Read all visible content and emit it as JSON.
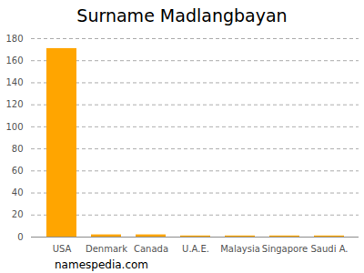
{
  "chart_data": {
    "type": "bar",
    "title": "Surname Madlangbayan",
    "caption": "namespedia.com",
    "categories": [
      "USA",
      "Denmark",
      "Canada",
      "U.A.E.",
      "Malaysia",
      "Singapore",
      "Saudi A."
    ],
    "values": [
      171,
      2,
      2,
      1,
      1,
      1,
      1
    ],
    "color": "#ffa500",
    "ylim": [
      0,
      180
    ],
    "yticks": [
      0,
      20,
      40,
      60,
      80,
      100,
      120,
      140,
      160,
      180
    ],
    "grid": true
  }
}
